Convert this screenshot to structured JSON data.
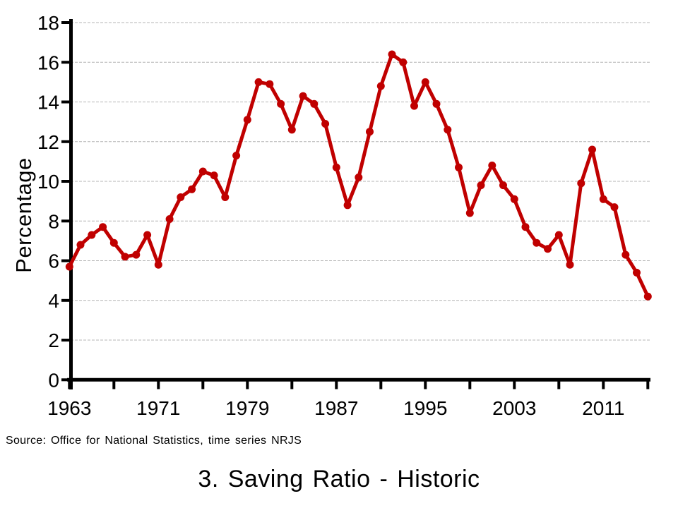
{
  "chart_data": {
    "type": "line",
    "title": "3. Saving Ratio - Historic",
    "ylabel": "Percentage",
    "source_note": "Source: Office for National Statistics, time series NRJS",
    "legend": "none",
    "grid": "horizontal-dotted",
    "line_color": "#C00000",
    "marker": "circle",
    "xlim": [
      1963,
      2015
    ],
    "ylim": [
      0,
      18
    ],
    "ytick_step": 2,
    "yticks": [
      0,
      2,
      4,
      6,
      8,
      10,
      12,
      14,
      16,
      18
    ],
    "xtick_minor_step": 4,
    "xtick_label_years": [
      1963,
      1971,
      1979,
      1987,
      1995,
      2003,
      2011
    ],
    "x": [
      1963,
      1964,
      1965,
      1966,
      1967,
      1968,
      1969,
      1970,
      1971,
      1972,
      1973,
      1974,
      1975,
      1976,
      1977,
      1978,
      1979,
      1980,
      1981,
      1982,
      1983,
      1984,
      1985,
      1986,
      1987,
      1988,
      1989,
      1990,
      1991,
      1992,
      1993,
      1994,
      1995,
      1996,
      1997,
      1998,
      1999,
      2000,
      2001,
      2002,
      2003,
      2004,
      2005,
      2006,
      2007,
      2008,
      2009,
      2010,
      2011,
      2012,
      2013,
      2014,
      2015
    ],
    "values": [
      5.7,
      6.8,
      7.3,
      7.7,
      6.9,
      6.2,
      6.3,
      7.3,
      5.8,
      8.1,
      9.2,
      9.6,
      10.5,
      10.3,
      9.2,
      11.3,
      13.1,
      15.0,
      14.9,
      13.9,
      12.6,
      14.3,
      13.9,
      12.9,
      10.7,
      8.8,
      10.2,
      12.5,
      14.8,
      16.4,
      16.0,
      13.8,
      15.0,
      13.9,
      12.6,
      10.7,
      8.4,
      9.8,
      10.8,
      9.8,
      9.1,
      7.7,
      6.9,
      6.6,
      7.3,
      5.8,
      9.9,
      11.6,
      9.1,
      8.7,
      6.3,
      5.4,
      4.2
    ]
  }
}
